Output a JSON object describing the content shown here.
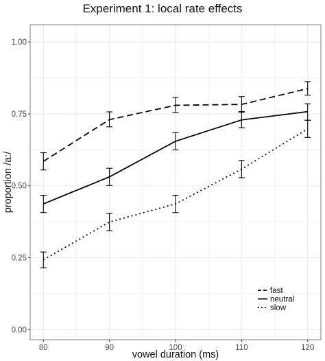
{
  "chart_data": {
    "type": "line",
    "title": "Experiment 1: local rate effects",
    "xlabel": "vowel duration (ms)",
    "ylabel": "proportion /a:/",
    "x": [
      80,
      90,
      100,
      110,
      120
    ],
    "x_tick_labels": [
      "80",
      "90",
      "100",
      "110",
      "120"
    ],
    "ylim": [
      0,
      1
    ],
    "y_ticks": [
      0,
      0.25,
      0.5,
      0.75,
      1
    ],
    "y_tick_labels": [
      "0.00",
      "0.25",
      "0.50",
      "0.75",
      "1.00"
    ],
    "grid": true,
    "legend_position": "bottom-right",
    "series": [
      {
        "name": "fast",
        "linestyle": "dashed",
        "values": [
          0.585,
          0.73,
          0.78,
          0.783,
          0.838
        ],
        "error_low": [
          0.555,
          0.705,
          0.755,
          0.758,
          0.815
        ],
        "error_high": [
          0.615,
          0.757,
          0.807,
          0.81,
          0.862
        ]
      },
      {
        "name": "neutral",
        "linestyle": "solid",
        "values": [
          0.437,
          0.531,
          0.655,
          0.729,
          0.758
        ],
        "error_low": [
          0.407,
          0.501,
          0.625,
          0.702,
          0.728
        ],
        "error_high": [
          0.467,
          0.561,
          0.685,
          0.756,
          0.785
        ]
      },
      {
        "name": "slow",
        "linestyle": "dotted",
        "values": [
          0.243,
          0.374,
          0.437,
          0.558,
          0.698
        ],
        "error_low": [
          0.215,
          0.344,
          0.407,
          0.528,
          0.668
        ],
        "error_high": [
          0.27,
          0.404,
          0.467,
          0.588,
          0.728
        ]
      }
    ],
    "colors": {
      "line": "#000000",
      "grid": "#ebebeb",
      "panel_border": "#7f7f7f"
    }
  }
}
